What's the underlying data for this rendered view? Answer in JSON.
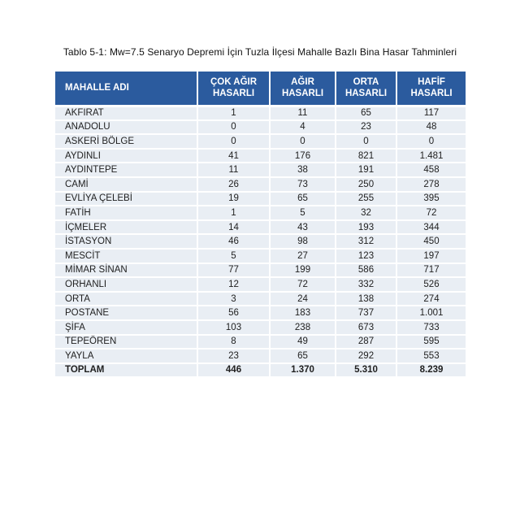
{
  "caption": "Tablo 5-1: Mw=7.5 Senaryo Depremi İçin Tuzla İlçesi Mahalle Bazlı Bina Hasar Tahminleri",
  "table": {
    "headers": [
      "MAHALLE ADI",
      "ÇOK AĞIR\nHASARLI",
      "AĞIR\nHASARLI",
      "ORTA\nHASARLI",
      "HAFİF\nHASARLI"
    ],
    "rows": [
      {
        "name": "AKFIRAT",
        "values": [
          "1",
          "11",
          "65",
          "117"
        ]
      },
      {
        "name": "ANADOLU",
        "values": [
          "0",
          "4",
          "23",
          "48"
        ]
      },
      {
        "name": "ASKERİ BÖLGE",
        "values": [
          "0",
          "0",
          "0",
          "0"
        ]
      },
      {
        "name": "AYDINLI",
        "values": [
          "41",
          "176",
          "821",
          "1.481"
        ]
      },
      {
        "name": "AYDINTEPE",
        "values": [
          "11",
          "38",
          "191",
          "458"
        ]
      },
      {
        "name": "CAMİ",
        "values": [
          "26",
          "73",
          "250",
          "278"
        ]
      },
      {
        "name": "EVLİYA ÇELEBİ",
        "values": [
          "19",
          "65",
          "255",
          "395"
        ]
      },
      {
        "name": "FATİH",
        "values": [
          "1",
          "5",
          "32",
          "72"
        ]
      },
      {
        "name": "İÇMELER",
        "values": [
          "14",
          "43",
          "193",
          "344"
        ]
      },
      {
        "name": "İSTASYON",
        "values": [
          "46",
          "98",
          "312",
          "450"
        ]
      },
      {
        "name": "MESCİT",
        "values": [
          "5",
          "27",
          "123",
          "197"
        ]
      },
      {
        "name": "MİMAR SİNAN",
        "values": [
          "77",
          "199",
          "586",
          "717"
        ]
      },
      {
        "name": "ORHANLI",
        "values": [
          "12",
          "72",
          "332",
          "526"
        ]
      },
      {
        "name": "ORTA",
        "values": [
          "3",
          "24",
          "138",
          "274"
        ]
      },
      {
        "name": "POSTANE",
        "values": [
          "56",
          "183",
          "737",
          "1.001"
        ]
      },
      {
        "name": "ŞİFA",
        "values": [
          "103",
          "238",
          "673",
          "733"
        ]
      },
      {
        "name": "TEPEÖREN",
        "values": [
          "8",
          "49",
          "287",
          "595"
        ]
      },
      {
        "name": "YAYLA",
        "values": [
          "23",
          "65",
          "292",
          "553"
        ]
      }
    ],
    "total": {
      "name": "TOPLAM",
      "values": [
        "446",
        "1.370",
        "5.310",
        "8.239"
      ]
    }
  },
  "colors": {
    "header_bg": "#2b5b9e",
    "header_text": "#ffffff",
    "row_bg": "#e9eef4",
    "separator": "#ffffff",
    "text": "#1f1f1f"
  }
}
